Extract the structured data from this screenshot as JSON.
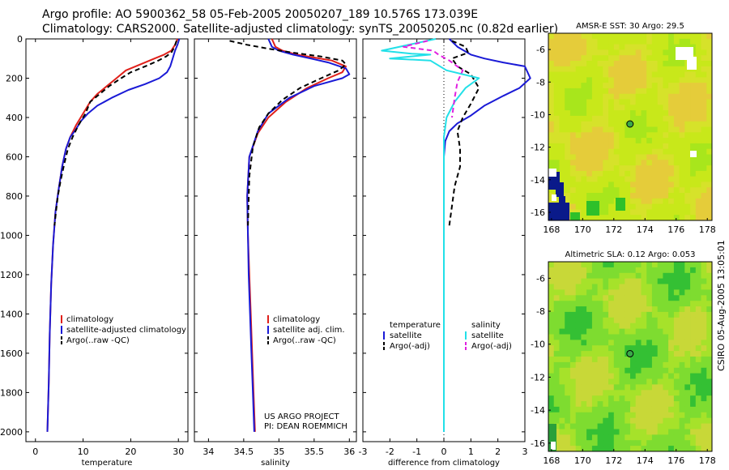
{
  "header": {
    "line1": "Argo profile: AO 5900362_58 05-Feb-2005 20050207_189 10.576S 173.039E",
    "line2": "Climatology: CARS2000. Satellite-adjusted climatology: synTS_20050205.nc (0.82d earlier)"
  },
  "side_stamp": "CSIRO 05-Aug-2005 13:05:01",
  "colors": {
    "climatology": "#e0201a",
    "satellite": "#1a1ad6",
    "argo": "#000000",
    "sat_salinity": "#22e0e8",
    "argo_salinity": "#e020e0",
    "map_bg": "#b9ea1a"
  },
  "chart_data": [
    {
      "type": "line",
      "id": "temperature",
      "xlabel": "temperature",
      "xlim": [
        -2,
        32
      ],
      "ylim": [
        2050,
        0
      ],
      "xticks": [
        "0",
        "10",
        "20",
        "30"
      ],
      "xtick_values": [
        0,
        10,
        20,
        30
      ],
      "yticks": [
        "0",
        "200",
        "400",
        "600",
        "800",
        "1000",
        "1200",
        "1400",
        "1600",
        "1800",
        "2000"
      ],
      "legend": {
        "position": "bottom-right",
        "entries": [
          "climatology",
          "satellite-adjusted climatology",
          "Argo(..raw -QC)"
        ]
      },
      "series": [
        {
          "name": "climatology",
          "color": "#e0201a",
          "dash": false,
          "x": [
            29.8,
            29.3,
            28.5,
            27.0,
            25.0,
            23.0,
            21.0,
            19.0,
            17.0,
            15.0,
            13.0,
            11.5,
            10.0,
            8.5,
            7.3,
            6.4,
            5.6,
            4.9,
            4.2,
            3.7,
            3.3,
            3.0,
            2.8,
            2.5
          ],
          "y": [
            0,
            30,
            60,
            80,
            100,
            120,
            140,
            160,
            200,
            240,
            280,
            320,
            380,
            440,
            500,
            560,
            650,
            760,
            880,
            1050,
            1250,
            1500,
            1750,
            2000
          ]
        },
        {
          "name": "satellite-adjusted climatology",
          "color": "#1a1ad6",
          "dash": false,
          "x": [
            30.2,
            29.8,
            29.3,
            28.8,
            28.3,
            27.6,
            26.0,
            23.0,
            19.5,
            16.0,
            13.0,
            11.0,
            9.5,
            8.5,
            7.3,
            6.4,
            5.6,
            4.9,
            4.2,
            3.7,
            3.3,
            3.0,
            2.8,
            2.5
          ],
          "y": [
            0,
            30,
            60,
            100,
            140,
            170,
            200,
            230,
            260,
            300,
            340,
            380,
            420,
            460,
            500,
            560,
            650,
            760,
            880,
            1050,
            1250,
            1500,
            1750,
            2000
          ]
        },
        {
          "name": "Argo(..raw -QC)",
          "color": "#000000",
          "dash": true,
          "x": [
            29.6,
            29.2,
            28.5,
            27.4,
            25.8,
            24.0,
            22.0,
            20.0,
            18.0,
            15.5,
            13.5,
            11.5,
            10.5,
            9.0,
            7.8,
            6.8,
            6.0,
            5.3,
            4.7,
            4.3,
            4.0
          ],
          "y": [
            10,
            40,
            70,
            90,
            110,
            130,
            150,
            170,
            200,
            240,
            280,
            320,
            380,
            440,
            500,
            560,
            640,
            720,
            800,
            880,
            950
          ]
        }
      ]
    },
    {
      "type": "line",
      "id": "salinity",
      "xlabel": "salinity",
      "xlim": [
        33.8,
        36.1
      ],
      "ylim": [
        2050,
        0
      ],
      "xticks": [
        "34",
        "34.5",
        "35",
        "35.5",
        "36"
      ],
      "xtick_values": [
        34,
        34.5,
        35,
        35.5,
        36
      ],
      "legend": {
        "position": "bottom-right",
        "entries": [
          "climatology",
          "satellite adj. clim.",
          "Argo(..raw -QC)"
        ]
      },
      "annotation": [
        "US ARGO PROJECT",
        "PI: DEAN ROEMMICH"
      ],
      "series": [
        {
          "name": "climatology",
          "color": "#e0201a",
          "dash": false,
          "x": [
            34.9,
            34.95,
            35.05,
            35.25,
            35.5,
            35.75,
            35.95,
            35.9,
            35.7,
            35.4,
            35.1,
            34.85,
            34.7,
            34.58,
            34.55,
            34.56,
            34.58,
            34.6,
            34.62,
            34.64,
            34.66
          ],
          "y": [
            0,
            40,
            60,
            80,
            95,
            110,
            140,
            170,
            200,
            250,
            320,
            400,
            480,
            600,
            800,
            1000,
            1200,
            1400,
            1600,
            1800,
            2000
          ]
        },
        {
          "name": "satellite adj. clim.",
          "color": "#1a1ad6",
          "dash": false,
          "x": [
            34.85,
            34.9,
            35.0,
            35.2,
            35.45,
            35.7,
            35.95,
            36.0,
            35.9,
            35.5,
            35.15,
            34.85,
            34.7,
            34.58,
            34.55,
            34.56,
            34.57,
            34.59,
            34.61,
            34.63,
            34.65
          ],
          "y": [
            0,
            40,
            60,
            80,
            100,
            120,
            150,
            180,
            200,
            240,
            300,
            380,
            470,
            600,
            800,
            1000,
            1200,
            1400,
            1600,
            1800,
            2000
          ]
        },
        {
          "name": "Argo(..raw -QC)",
          "color": "#000000",
          "dash": true,
          "x": [
            34.3,
            34.55,
            34.85,
            35.2,
            35.6,
            35.9,
            35.95,
            35.85,
            35.6,
            35.3,
            35.05,
            34.85,
            34.72,
            34.63,
            34.58,
            34.56
          ],
          "y": [
            10,
            30,
            50,
            70,
            90,
            110,
            130,
            160,
            200,
            250,
            310,
            380,
            450,
            550,
            700,
            950
          ]
        }
      ]
    },
    {
      "type": "line",
      "id": "difference",
      "xlabel": "difference from climatology",
      "xlim": [
        -3,
        3
      ],
      "ylim": [
        2050,
        0
      ],
      "xticks": [
        "-3",
        "-2",
        "-1",
        "0",
        "1",
        "2",
        "3"
      ],
      "xtick_values": [
        -3,
        -2,
        -1,
        0,
        1,
        2,
        3
      ],
      "legend_left": {
        "title": "temperature",
        "entries": [
          "satellite",
          "Argo(-adj)"
        ]
      },
      "legend_right": {
        "title": "salinity",
        "entries": [
          "satellite",
          "Argo(-adj)"
        ]
      },
      "series": [
        {
          "name": "temperature satellite",
          "color": "#1a1ad6",
          "dash": false,
          "x": [
            0.2,
            0.5,
            1.0,
            1.5,
            2.2,
            3.0,
            3.2,
            2.8,
            2.2,
            1.5,
            1.0,
            0.5,
            0.2,
            0.05,
            0.0,
            0.0
          ],
          "y": [
            0,
            40,
            80,
            100,
            120,
            140,
            200,
            250,
            290,
            340,
            390,
            430,
            470,
            520,
            600,
            2000
          ]
        },
        {
          "name": "temperature Argo(-adj)",
          "color": "#000000",
          "dash": true,
          "x": [
            0.3,
            0.8,
            0.9,
            0.3,
            0.5,
            1.0,
            1.3,
            1.0,
            0.7,
            0.5,
            0.6,
            0.6,
            0.4,
            0.3,
            0.2
          ],
          "y": [
            10,
            40,
            70,
            100,
            140,
            180,
            250,
            330,
            400,
            470,
            560,
            650,
            750,
            850,
            950
          ]
        },
        {
          "name": "salinity satellite",
          "color": "#22e0e8",
          "dash": false,
          "x": [
            -0.3,
            -2.3,
            -1.2,
            -0.5,
            -2.0,
            -0.5,
            0.1,
            1.3,
            0.8,
            0.4,
            0.1,
            0.0,
            0.0,
            0.0
          ],
          "y": [
            0,
            60,
            75,
            80,
            100,
            110,
            160,
            200,
            250,
            320,
            400,
            500,
            900,
            2000
          ]
        },
        {
          "name": "salinity Argo(-adj)",
          "color": "#e020e0",
          "dash": true,
          "x": [
            -0.6,
            -1.5,
            -0.4,
            -0.2,
            0.2,
            0.7,
            0.5,
            0.4,
            0.3
          ],
          "y": [
            10,
            40,
            60,
            80,
            110,
            160,
            220,
            300,
            400
          ]
        }
      ]
    },
    {
      "type": "heatmap",
      "id": "sst-map",
      "title": "AMSR-E SST: 30 Argo: 29.5",
      "xticks": [
        "168",
        "170",
        "172",
        "174",
        "176",
        "178"
      ],
      "xtick_values": [
        168,
        170,
        172,
        174,
        176,
        178
      ],
      "yticks": [
        "-6",
        "-8",
        "-10",
        "-12",
        "-14",
        "-16"
      ],
      "ytick_values": [
        -6,
        -8,
        -10,
        -12,
        -14,
        -16
      ],
      "xlim": [
        167.8,
        178.3
      ],
      "ylim": [
        -16.5,
        -5
      ],
      "marker": {
        "lon": 173.039,
        "lat": -10.576
      }
    },
    {
      "type": "heatmap",
      "id": "sla-map",
      "title": "Altimetric SLA: 0.12 Argo: 0.053",
      "xticks": [
        "168",
        "170",
        "172",
        "174",
        "176",
        "178"
      ],
      "xtick_values": [
        168,
        170,
        172,
        174,
        176,
        178
      ],
      "yticks": [
        "-6",
        "-8",
        "-10",
        "-12",
        "-14",
        "-16"
      ],
      "ytick_values": [
        -6,
        -8,
        -10,
        -12,
        -14,
        -16
      ],
      "xlim": [
        167.8,
        178.3
      ],
      "ylim": [
        -16.5,
        -5
      ],
      "marker": {
        "lon": 173.039,
        "lat": -10.576
      }
    }
  ]
}
